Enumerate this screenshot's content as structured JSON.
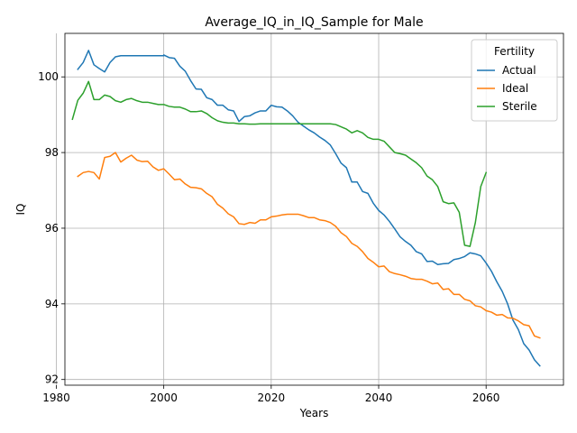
{
  "chart_data": {
    "type": "line",
    "title": "Average_IQ_in_IQ_Sample for Male",
    "xlabel": "Years",
    "ylabel": "IQ",
    "xlim": [
      1981.6,
      2074.4
    ],
    "ylim": [
      91.85,
      101.15
    ],
    "xticks": [
      1980,
      2000,
      2020,
      2040,
      2060
    ],
    "yticks": [
      92,
      94,
      96,
      98,
      100
    ],
    "grid": true,
    "legend": {
      "title": "Fertility",
      "placement": "upper-right"
    },
    "series": [
      {
        "name": "Actual",
        "color": "#1f77b4",
        "points": [
          [
            1984,
            100.2
          ],
          [
            1985,
            100.38
          ],
          [
            1986,
            100.7
          ],
          [
            1987,
            100.32
          ],
          [
            1988,
            100.22
          ],
          [
            1989,
            100.13
          ],
          [
            1990,
            100.38
          ],
          [
            1991,
            100.53
          ],
          [
            1992,
            100.56
          ],
          [
            1993,
            100.56
          ],
          [
            1995,
            100.56
          ],
          [
            2000,
            100.56
          ],
          [
            2000,
            100.58
          ],
          [
            2001,
            100.51
          ],
          [
            2002,
            100.49
          ],
          [
            2003,
            100.28
          ],
          [
            2004,
            100.15
          ],
          [
            2005,
            99.9
          ],
          [
            2006,
            99.68
          ],
          [
            2007,
            99.67
          ],
          [
            2008,
            99.45
          ],
          [
            2009,
            99.4
          ],
          [
            2010,
            99.25
          ],
          [
            2011,
            99.25
          ],
          [
            2012,
            99.13
          ],
          [
            2013,
            99.1
          ],
          [
            2014,
            98.82
          ],
          [
            2015,
            98.95
          ],
          [
            2016,
            98.97
          ],
          [
            2017,
            99.05
          ],
          [
            2018,
            99.1
          ],
          [
            2019,
            99.1
          ],
          [
            2020,
            99.25
          ],
          [
            2021,
            99.21
          ],
          [
            2022,
            99.2
          ],
          [
            2023,
            99.1
          ],
          [
            2024,
            98.97
          ],
          [
            2025,
            98.8
          ],
          [
            2026,
            98.7
          ],
          [
            2027,
            98.6
          ],
          [
            2028,
            98.52
          ],
          [
            2029,
            98.41
          ],
          [
            2030,
            98.32
          ],
          [
            2031,
            98.2
          ],
          [
            2032,
            97.97
          ],
          [
            2033,
            97.72
          ],
          [
            2034,
            97.6
          ],
          [
            2035,
            97.22
          ],
          [
            2036,
            97.22
          ],
          [
            2037,
            96.97
          ],
          [
            2038,
            96.92
          ],
          [
            2039,
            96.66
          ],
          [
            2040,
            96.47
          ],
          [
            2041,
            96.35
          ],
          [
            2042,
            96.18
          ],
          [
            2043,
            95.98
          ],
          [
            2044,
            95.77
          ],
          [
            2045,
            95.65
          ],
          [
            2046,
            95.55
          ],
          [
            2047,
            95.38
          ],
          [
            2048,
            95.32
          ],
          [
            2049,
            95.12
          ],
          [
            2050,
            95.13
          ],
          [
            2051,
            95.04
          ],
          [
            2052,
            95.06
          ],
          [
            2053,
            95.07
          ],
          [
            2054,
            95.17
          ],
          [
            2055,
            95.2
          ],
          [
            2056,
            95.25
          ],
          [
            2057,
            95.35
          ],
          [
            2058,
            95.32
          ],
          [
            2059,
            95.27
          ],
          [
            2060,
            95.08
          ],
          [
            2061,
            94.86
          ],
          [
            2062,
            94.58
          ],
          [
            2063,
            94.33
          ],
          [
            2064,
            94.0
          ],
          [
            2065,
            93.57
          ],
          [
            2066,
            93.32
          ],
          [
            2067,
            92.95
          ],
          [
            2068,
            92.78
          ],
          [
            2069,
            92.52
          ],
          [
            2070,
            92.36
          ]
        ]
      },
      {
        "name": "Ideal",
        "color": "#ff7f0e",
        "points": [
          [
            1984,
            97.37
          ],
          [
            1985,
            97.47
          ],
          [
            1986,
            97.5
          ],
          [
            1987,
            97.47
          ],
          [
            1988,
            97.3
          ],
          [
            1989,
            97.87
          ],
          [
            1990,
            97.9
          ],
          [
            1991,
            98.0
          ],
          [
            1992,
            97.75
          ],
          [
            1993,
            97.85
          ],
          [
            1994,
            97.93
          ],
          [
            1995,
            97.8
          ],
          [
            1996,
            97.76
          ],
          [
            1997,
            97.77
          ],
          [
            1998,
            97.62
          ],
          [
            1999,
            97.53
          ],
          [
            2000,
            97.57
          ],
          [
            2001,
            97.43
          ],
          [
            2002,
            97.28
          ],
          [
            2003,
            97.3
          ],
          [
            2004,
            97.17
          ],
          [
            2005,
            97.08
          ],
          [
            2006,
            97.07
          ],
          [
            2007,
            97.04
          ],
          [
            2008,
            96.92
          ],
          [
            2009,
            96.83
          ],
          [
            2010,
            96.63
          ],
          [
            2011,
            96.53
          ],
          [
            2012,
            96.38
          ],
          [
            2013,
            96.3
          ],
          [
            2014,
            96.12
          ],
          [
            2015,
            96.1
          ],
          [
            2016,
            96.15
          ],
          [
            2017,
            96.13
          ],
          [
            2018,
            96.22
          ],
          [
            2019,
            96.22
          ],
          [
            2020,
            96.3
          ],
          [
            2021,
            96.32
          ],
          [
            2022,
            96.35
          ],
          [
            2023,
            96.37
          ],
          [
            2024,
            96.37
          ],
          [
            2025,
            96.37
          ],
          [
            2026,
            96.33
          ],
          [
            2027,
            96.28
          ],
          [
            2028,
            96.28
          ],
          [
            2029,
            96.22
          ],
          [
            2030,
            96.2
          ],
          [
            2031,
            96.15
          ],
          [
            2032,
            96.05
          ],
          [
            2033,
            95.88
          ],
          [
            2034,
            95.78
          ],
          [
            2035,
            95.6
          ],
          [
            2036,
            95.52
          ],
          [
            2037,
            95.38
          ],
          [
            2038,
            95.2
          ],
          [
            2039,
            95.1
          ],
          [
            2040,
            94.98
          ],
          [
            2041,
            95.0
          ],
          [
            2042,
            94.85
          ],
          [
            2043,
            94.8
          ],
          [
            2044,
            94.77
          ],
          [
            2045,
            94.73
          ],
          [
            2046,
            94.67
          ],
          [
            2047,
            94.65
          ],
          [
            2048,
            94.65
          ],
          [
            2049,
            94.6
          ],
          [
            2050,
            94.53
          ],
          [
            2051,
            94.55
          ],
          [
            2052,
            94.38
          ],
          [
            2053,
            94.4
          ],
          [
            2054,
            94.25
          ],
          [
            2055,
            94.25
          ],
          [
            2056,
            94.12
          ],
          [
            2057,
            94.08
          ],
          [
            2058,
            93.95
          ],
          [
            2059,
            93.92
          ],
          [
            2060,
            93.82
          ],
          [
            2061,
            93.78
          ],
          [
            2062,
            93.7
          ],
          [
            2063,
            93.72
          ],
          [
            2064,
            93.63
          ],
          [
            2065,
            93.62
          ],
          [
            2066,
            93.55
          ],
          [
            2067,
            93.45
          ],
          [
            2068,
            93.42
          ],
          [
            2069,
            93.15
          ],
          [
            2070,
            93.1
          ]
        ]
      },
      {
        "name": "Sterile",
        "color": "#2ca02c",
        "points": [
          [
            1983,
            98.88
          ],
          [
            1984,
            99.38
          ],
          [
            1985,
            99.57
          ],
          [
            1986,
            99.88
          ],
          [
            1987,
            99.4
          ],
          [
            1988,
            99.4
          ],
          [
            1989,
            99.52
          ],
          [
            1990,
            99.48
          ],
          [
            1991,
            99.37
          ],
          [
            1992,
            99.33
          ],
          [
            1993,
            99.4
          ],
          [
            1994,
            99.43
          ],
          [
            1995,
            99.37
          ],
          [
            1996,
            99.33
          ],
          [
            1997,
            99.33
          ],
          [
            1998,
            99.3
          ],
          [
            1999,
            99.27
          ],
          [
            2000,
            99.27
          ],
          [
            2001,
            99.22
          ],
          [
            2002,
            99.2
          ],
          [
            2003,
            99.2
          ],
          [
            2004,
            99.15
          ],
          [
            2005,
            99.08
          ],
          [
            2006,
            99.08
          ],
          [
            2007,
            99.1
          ],
          [
            2008,
            99.03
          ],
          [
            2009,
            98.92
          ],
          [
            2010,
            98.84
          ],
          [
            2011,
            98.8
          ],
          [
            2012,
            98.78
          ],
          [
            2013,
            98.78
          ],
          [
            2014,
            98.76
          ],
          [
            2015,
            98.76
          ],
          [
            2016,
            98.75
          ],
          [
            2017,
            98.75
          ],
          [
            2018,
            98.76
          ],
          [
            2019,
            98.76
          ],
          [
            2020,
            98.76
          ],
          [
            2025,
            98.76
          ],
          [
            2031,
            98.76
          ],
          [
            2032,
            98.74
          ],
          [
            2033,
            98.68
          ],
          [
            2034,
            98.62
          ],
          [
            2035,
            98.52
          ],
          [
            2036,
            98.58
          ],
          [
            2037,
            98.52
          ],
          [
            2038,
            98.4
          ],
          [
            2039,
            98.35
          ],
          [
            2040,
            98.35
          ],
          [
            2041,
            98.3
          ],
          [
            2042,
            98.15
          ],
          [
            2043,
            98.0
          ],
          [
            2044,
            97.97
          ],
          [
            2045,
            97.93
          ],
          [
            2046,
            97.83
          ],
          [
            2047,
            97.73
          ],
          [
            2048,
            97.6
          ],
          [
            2049,
            97.38
          ],
          [
            2050,
            97.28
          ],
          [
            2051,
            97.1
          ],
          [
            2052,
            96.7
          ],
          [
            2053,
            96.65
          ],
          [
            2054,
            96.67
          ],
          [
            2055,
            96.42
          ],
          [
            2056,
            95.55
          ],
          [
            2057,
            95.52
          ],
          [
            2058,
            96.15
          ],
          [
            2059,
            97.1
          ],
          [
            2060,
            97.47
          ]
        ]
      }
    ]
  }
}
